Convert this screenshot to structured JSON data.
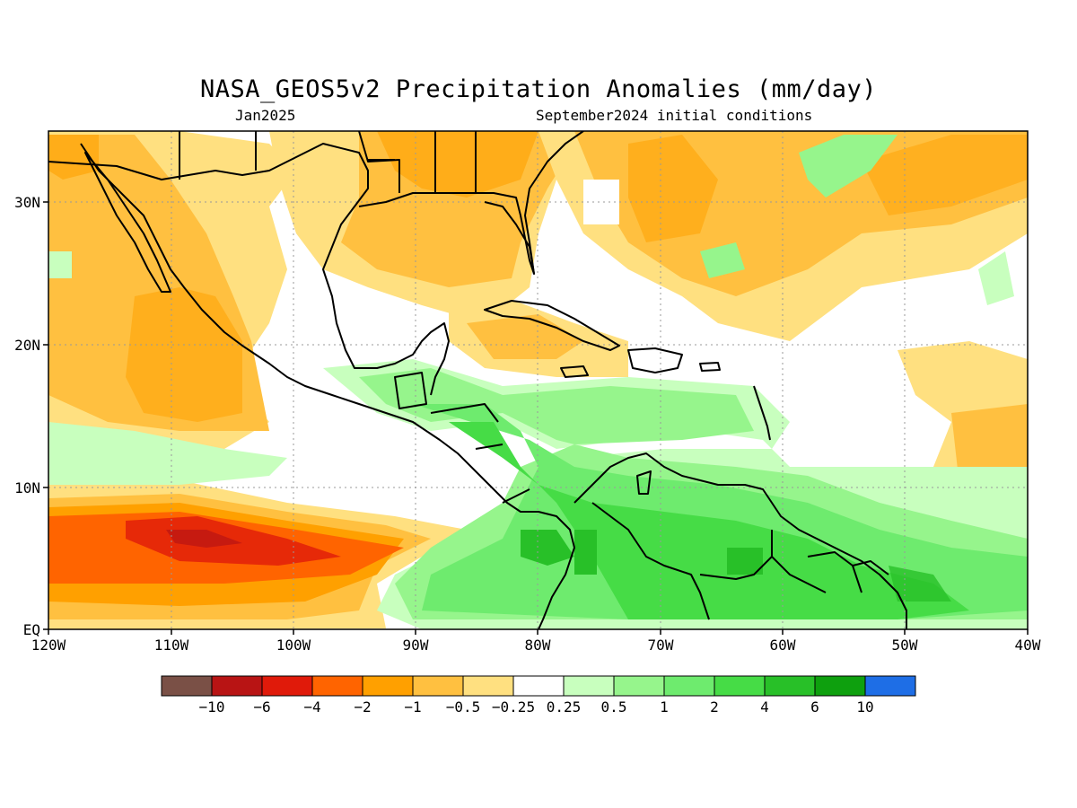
{
  "map": {
    "title": "NASA_GEOS5v2 Precipitation Anomalies (mm/day)",
    "valid_month": "Jan2025",
    "init_conditions": "September2024 initial conditions",
    "lat_labels": [
      "30N",
      "20N",
      "10N",
      "EQ"
    ],
    "lon_labels": [
      "120W",
      "110W",
      "100W",
      "90W",
      "80W",
      "70W",
      "60W",
      "50W",
      "40W"
    ],
    "region": "Caribbean / Central America / Gulf of Mexico, EQ–35N, 120W–40W"
  },
  "legend": {
    "tick_labels": [
      "-10",
      "-6",
      "-4",
      "-2",
      "-1",
      "-0.5",
      "-0.25",
      "0.25",
      "0.5",
      "1",
      "2",
      "4",
      "6",
      "10"
    ],
    "colors": [
      "#7a5046",
      "#b81414",
      "#e01a0a",
      "#ff6400",
      "#ffa000",
      "#ffc040",
      "#ffe080",
      "#ffffff",
      "#c8ffbe",
      "#96f58c",
      "#6eeb6e",
      "#46dc46",
      "#28c028",
      "#0ea00e",
      "#1e6ee6"
    ]
  },
  "colors": {
    "coast": "#000000",
    "grid": "#999999"
  }
}
